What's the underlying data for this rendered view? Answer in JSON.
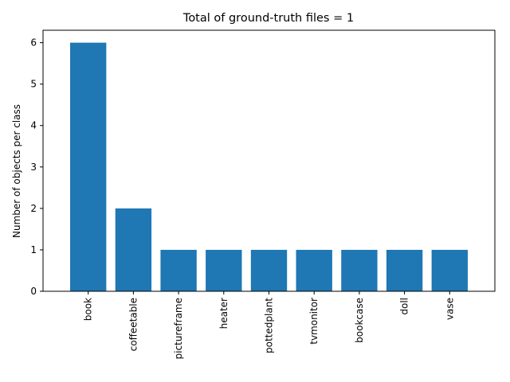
{
  "chart_data": {
    "type": "bar",
    "title": "Total of ground-truth files = 1",
    "xlabel": "",
    "ylabel": "Number of objects per class",
    "categories": [
      "book",
      "coffeetable",
      "pictureframe",
      "heater",
      "pottedplant",
      "tvmonitor",
      "bookcase",
      "doll",
      "vase"
    ],
    "values": [
      6,
      2,
      1,
      1,
      1,
      1,
      1,
      1,
      1
    ],
    "ylim": [
      0,
      6.3
    ],
    "yticks": [
      0,
      1,
      2,
      3,
      4,
      5,
      6
    ],
    "grid": false,
    "legend": "none",
    "bar_color": "#1f77b4"
  }
}
